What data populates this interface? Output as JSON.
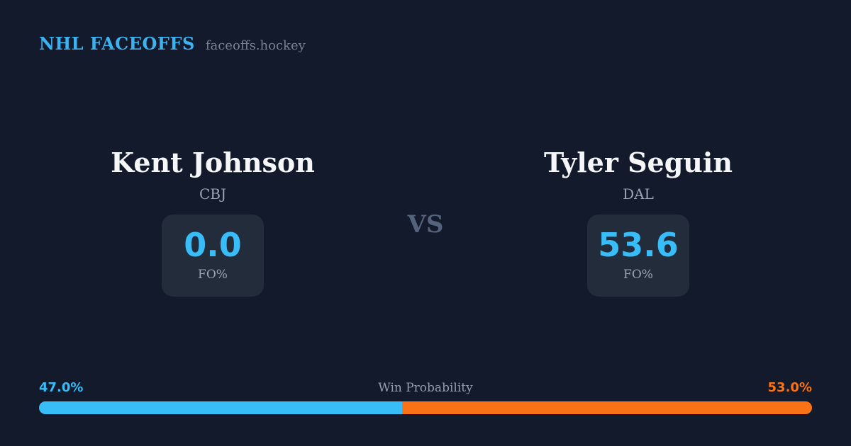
{
  "header": {
    "brand": "NHL FACEOFFS",
    "site": "faceoffs.hockey"
  },
  "matchup": {
    "vs_label": "VS",
    "players": [
      {
        "name": "Kent Johnson",
        "team": "CBJ",
        "stat_value": "0.0",
        "stat_label": "FO%"
      },
      {
        "name": "Tyler Seguin",
        "team": "DAL",
        "stat_value": "53.6",
        "stat_label": "FO%"
      }
    ]
  },
  "win_probability": {
    "title": "Win Probability",
    "left_pct_label": "47.0%",
    "right_pct_label": "53.0%",
    "left_value": 47.0,
    "right_value": 53.0
  },
  "colors": {
    "background": "#121a2b",
    "stat_box": "#222c3b",
    "accent_blue": "#38bdf8",
    "accent_orange": "#f97316",
    "text_primary": "#f4f6f8",
    "text_muted": "#9aa4b4",
    "vs_text": "#55627c"
  }
}
